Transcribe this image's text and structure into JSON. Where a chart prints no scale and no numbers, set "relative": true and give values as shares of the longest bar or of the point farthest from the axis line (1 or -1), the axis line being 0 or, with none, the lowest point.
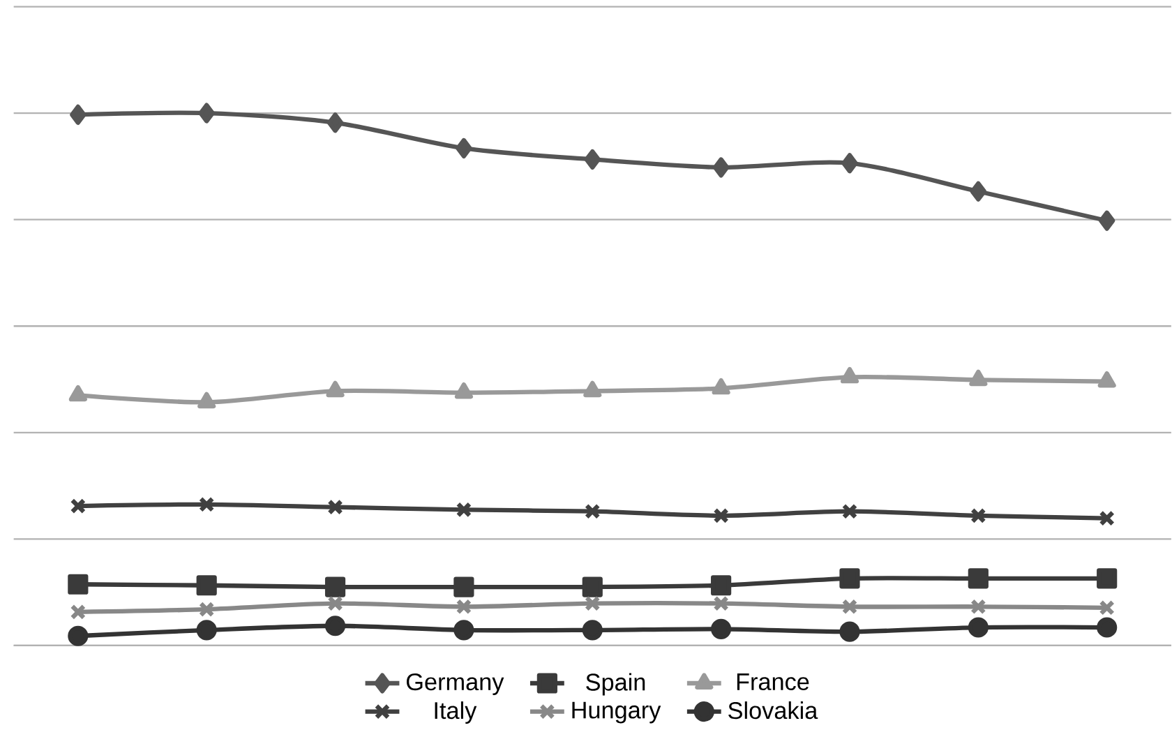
{
  "chart_data": {
    "type": "line",
    "relative": true,
    "grid": "y",
    "legend": "bottom",
    "line_style": "solid",
    "categories": [
      null,
      null,
      null,
      null,
      null,
      null,
      null,
      null,
      null
    ],
    "series": [
      {
        "name": "Germany",
        "color": "#555555",
        "marker": "diamond",
        "values": [
          0.997,
          1,
          0.982,
          0.934,
          0.913,
          0.898,
          0.906,
          0.853,
          0.798
        ]
      },
      {
        "name": "Spain",
        "color": "#3a3a3a",
        "marker": "square",
        "values": [
          0.115,
          0.113,
          0.11,
          0.11,
          0.11,
          0.113,
          0.126,
          0.126,
          0.126
        ]
      },
      {
        "name": "France",
        "color": "#999999",
        "marker": "triangle",
        "values": [
          0.47,
          0.457,
          0.478,
          0.475,
          0.478,
          0.483,
          0.504,
          0.499,
          0.496
        ]
      },
      {
        "name": "Italy",
        "color": "#404040",
        "marker": "cross",
        "values": [
          0.262,
          0.265,
          0.26,
          0.255,
          0.252,
          0.244,
          0.252,
          0.244,
          0.239
        ]
      },
      {
        "name": "Hungary",
        "color": "#888888",
        "marker": "cross",
        "values": [
          0.063,
          0.068,
          0.079,
          0.073,
          0.079,
          0.079,
          0.073,
          0.073,
          0.071
        ]
      },
      {
        "name": "Slovakia",
        "color": "#333333",
        "marker": "circle",
        "values": [
          0.018,
          0.029,
          0.037,
          0.029,
          0.029,
          0.031,
          0.026,
          0.034,
          0.034
        ]
      }
    ]
  }
}
